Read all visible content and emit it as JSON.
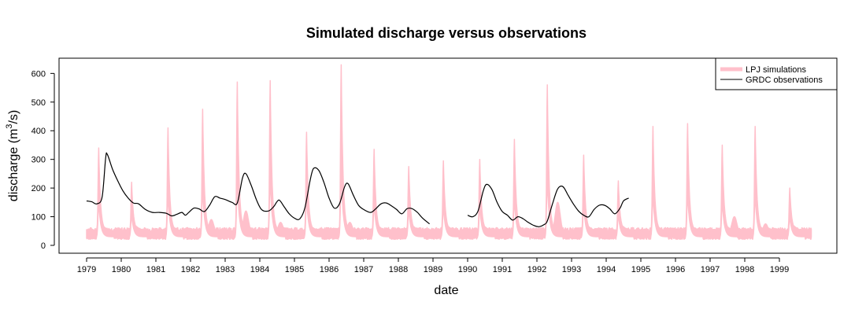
{
  "chart_data": {
    "type": "line",
    "title": "Simulated discharge versus observations",
    "xlabel": "date",
    "ylabel": "discharge (m",
    "ylabel_sup": "3",
    "ylabel_tail": "/s)",
    "xlim": [
      1979.0,
      2000.0
    ],
    "ylim": [
      0,
      650
    ],
    "yticks": [
      0,
      100,
      200,
      300,
      400,
      500,
      600
    ],
    "xticks": [
      "1979",
      "1980",
      "1981",
      "1982",
      "1983",
      "1984",
      "1985",
      "1986",
      "1987",
      "1988",
      "1989",
      "1990",
      "1991",
      "1992",
      "1993",
      "1994",
      "1995",
      "1996",
      "1997",
      "1998",
      "1999"
    ],
    "legend_position": "top-right",
    "colors": {
      "simulations": "#ffc0cb",
      "observations": "#000000"
    },
    "series": [
      {
        "name": "LPJ simulations",
        "kind": "band",
        "peaks": [
          {
            "x": 1979.35,
            "y": 340
          },
          {
            "x": 1980.3,
            "y": 220
          },
          {
            "x": 1981.35,
            "y": 410
          },
          {
            "x": 1982.35,
            "y": 475
          },
          {
            "x": 1983.35,
            "y": 570
          },
          {
            "x": 1984.3,
            "y": 575
          },
          {
            "x": 1985.35,
            "y": 395
          },
          {
            "x": 1986.35,
            "y": 630
          },
          {
            "x": 1987.3,
            "y": 335
          },
          {
            "x": 1988.3,
            "y": 275
          },
          {
            "x": 1989.3,
            "y": 295
          },
          {
            "x": 1990.35,
            "y": 300
          },
          {
            "x": 1991.35,
            "y": 370
          },
          {
            "x": 1992.3,
            "y": 560
          },
          {
            "x": 1993.35,
            "y": 315
          },
          {
            "x": 1994.35,
            "y": 225
          },
          {
            "x": 1995.35,
            "y": 415
          },
          {
            "x": 1996.35,
            "y": 425
          },
          {
            "x": 1997.35,
            "y": 350
          },
          {
            "x": 1998.3,
            "y": 415
          },
          {
            "x": 1999.3,
            "y": 200
          }
        ],
        "secondary": [
          {
            "x": 1982.6,
            "y": 90
          },
          {
            "x": 1983.6,
            "y": 120
          },
          {
            "x": 1984.6,
            "y": 80
          },
          {
            "x": 1986.6,
            "y": 80
          },
          {
            "x": 1992.6,
            "y": 150
          },
          {
            "x": 1997.7,
            "y": 100
          },
          {
            "x": 1998.6,
            "y": 75
          }
        ],
        "baseline_low": 25,
        "baseline_high": 55
      },
      {
        "name": "GRDC observations",
        "kind": "line",
        "segments": [
          [
            [
              1979.0,
              155
            ],
            [
              1979.15,
              152
            ],
            [
              1979.3,
              145
            ],
            [
              1979.45,
              170
            ],
            [
              1979.55,
              305
            ],
            [
              1979.6,
              317
            ],
            [
              1979.75,
              265
            ],
            [
              1979.9,
              225
            ],
            [
              1980.05,
              190
            ],
            [
              1980.2,
              165
            ],
            [
              1980.35,
              148
            ],
            [
              1980.5,
              145
            ],
            [
              1980.7,
              125
            ],
            [
              1980.9,
              115
            ],
            [
              1981.1,
              115
            ],
            [
              1981.3,
              112
            ],
            [
              1981.45,
              103
            ],
            [
              1981.6,
              108
            ],
            [
              1981.75,
              115
            ],
            [
              1981.85,
              105
            ],
            [
              1981.95,
              115
            ],
            [
              1982.1,
              130
            ],
            [
              1982.25,
              127
            ],
            [
              1982.4,
              118
            ],
            [
              1982.55,
              140
            ],
            [
              1982.7,
              170
            ],
            [
              1982.85,
              165
            ],
            [
              1983.0,
              160
            ],
            [
              1983.2,
              150
            ],
            [
              1983.35,
              148
            ],
            [
              1983.5,
              235
            ],
            [
              1983.6,
              250
            ],
            [
              1983.75,
              210
            ],
            [
              1983.9,
              160
            ],
            [
              1984.05,
              125
            ],
            [
              1984.25,
              120
            ],
            [
              1984.4,
              135
            ],
            [
              1984.55,
              158
            ],
            [
              1984.7,
              135
            ],
            [
              1984.85,
              110
            ],
            [
              1985.0,
              95
            ],
            [
              1985.15,
              92
            ],
            [
              1985.3,
              130
            ],
            [
              1985.45,
              225
            ],
            [
              1985.55,
              268
            ],
            [
              1985.7,
              262
            ],
            [
              1985.85,
              220
            ],
            [
              1986.0,
              165
            ],
            [
              1986.15,
              130
            ],
            [
              1986.3,
              145
            ],
            [
              1986.45,
              205
            ],
            [
              1986.55,
              215
            ],
            [
              1986.7,
              175
            ],
            [
              1986.85,
              140
            ],
            [
              1987.0,
              125
            ],
            [
              1987.2,
              115
            ],
            [
              1987.35,
              128
            ],
            [
              1987.5,
              145
            ],
            [
              1987.65,
              148
            ],
            [
              1987.8,
              138
            ],
            [
              1987.95,
              125
            ],
            [
              1988.1,
              110
            ],
            [
              1988.25,
              128
            ],
            [
              1988.4,
              128
            ],
            [
              1988.55,
              115
            ],
            [
              1988.7,
              95
            ],
            [
              1988.9,
              75
            ]
          ],
          [
            [
              1990.0,
              105
            ],
            [
              1990.15,
              100
            ],
            [
              1990.3,
              120
            ],
            [
              1990.45,
              190
            ],
            [
              1990.55,
              213
            ],
            [
              1990.7,
              195
            ],
            [
              1990.85,
              150
            ],
            [
              1991.0,
              118
            ],
            [
              1991.15,
              105
            ],
            [
              1991.3,
              88
            ],
            [
              1991.45,
              100
            ],
            [
              1991.6,
              93
            ],
            [
              1991.75,
              80
            ],
            [
              1991.9,
              70
            ],
            [
              1992.05,
              65
            ],
            [
              1992.2,
              72
            ],
            [
              1992.3,
              85
            ],
            [
              1992.45,
              145
            ],
            [
              1992.6,
              197
            ],
            [
              1992.75,
              205
            ],
            [
              1992.9,
              175
            ],
            [
              1993.05,
              145
            ],
            [
              1993.2,
              120
            ],
            [
              1993.35,
              105
            ],
            [
              1993.5,
              100
            ],
            [
              1993.65,
              125
            ],
            [
              1993.8,
              140
            ],
            [
              1993.95,
              140
            ],
            [
              1994.1,
              128
            ],
            [
              1994.25,
              110
            ],
            [
              1994.4,
              130
            ],
            [
              1994.5,
              155
            ],
            [
              1994.65,
              165
            ]
          ]
        ]
      }
    ]
  }
}
